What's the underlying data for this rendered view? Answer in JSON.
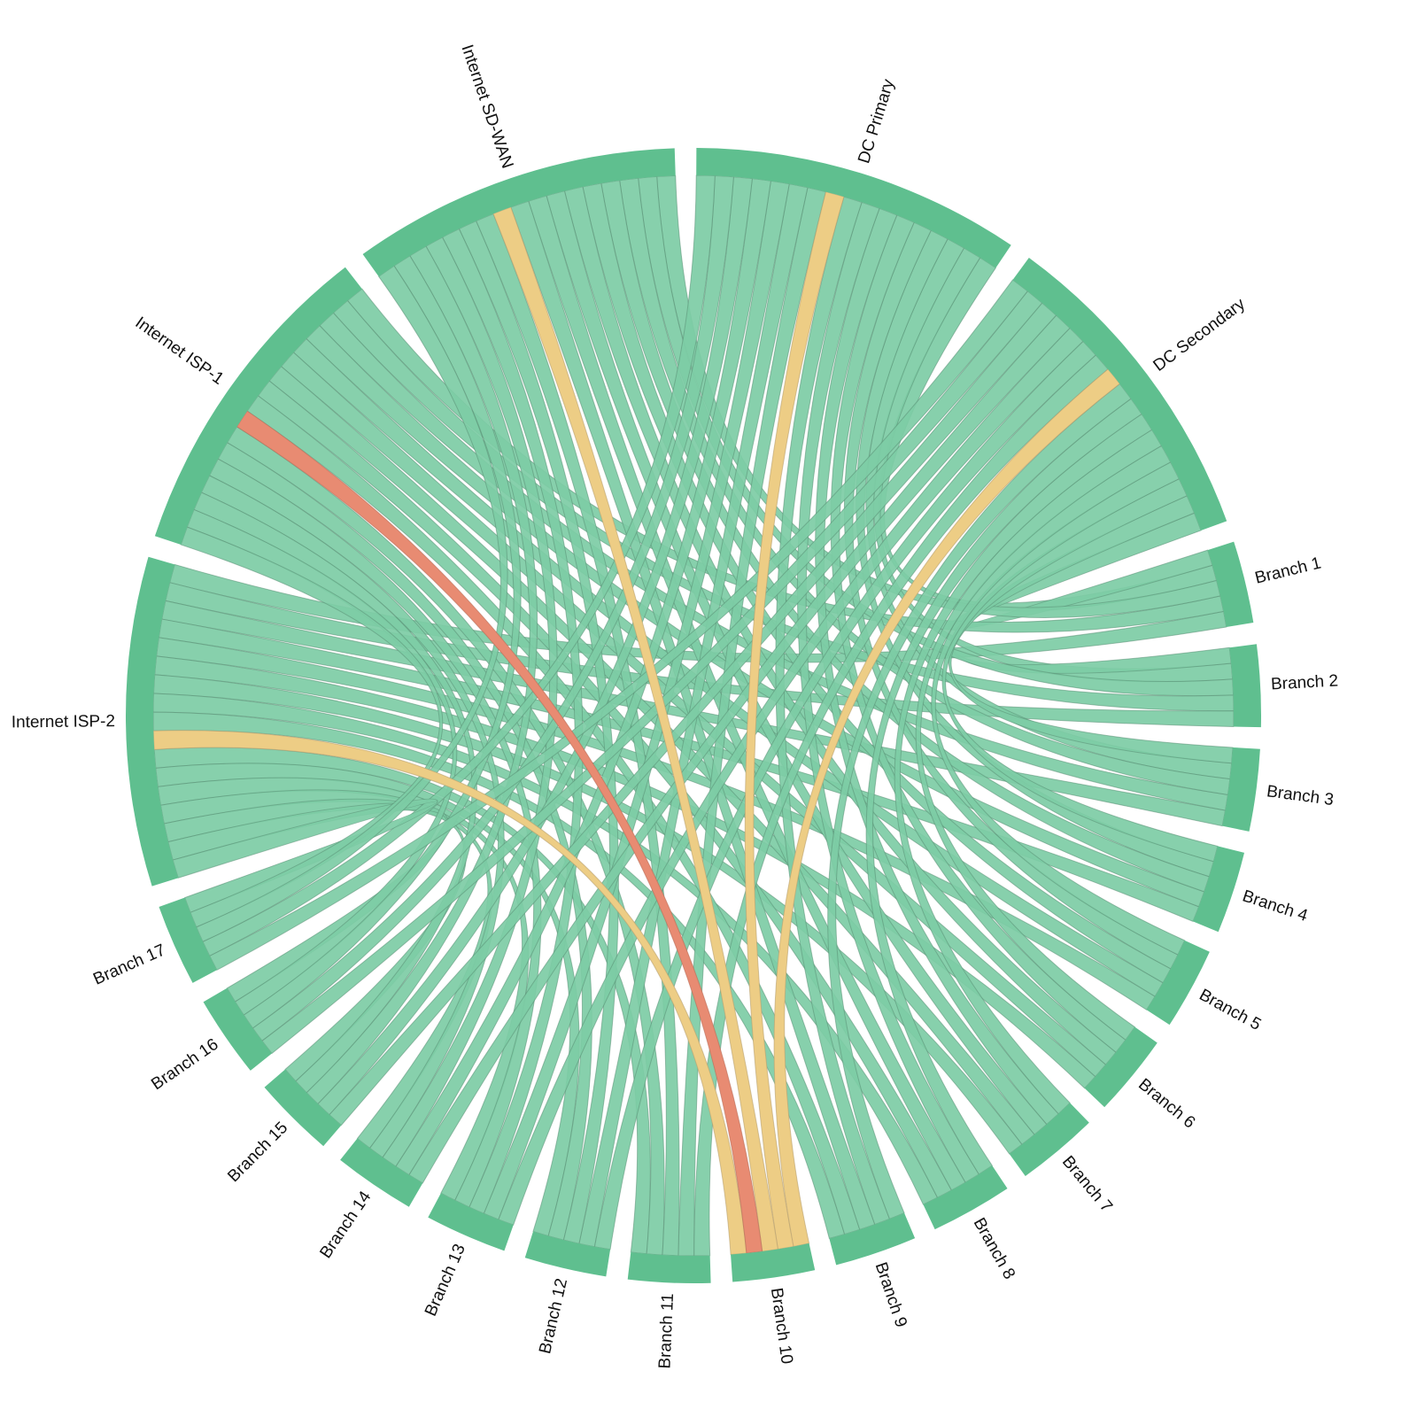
{
  "chart_data": {
    "type": "chord",
    "title": "",
    "colors": {
      "group_arc": "#5fbf8f",
      "ribbon_default": "#7dcca5",
      "ribbon_highlight": "#edcd85",
      "ribbon_critical": "#e88b72"
    },
    "layout": {
      "center": [
        783,
        808
      ],
      "outer_radius": 641,
      "inner_radius": 610,
      "start_angle_deg": 0,
      "gap_deg": 2.2,
      "direction": "clockwise"
    },
    "groups": [
      {
        "id": "dc-primary",
        "label": "DC Primary",
        "type": "hub",
        "value": 17
      },
      {
        "id": "dc-secondary",
        "label": "DC Secondary",
        "type": "hub",
        "value": 17
      },
      {
        "id": "branch-1",
        "label": "Branch 1",
        "type": "branch",
        "value": 5
      },
      {
        "id": "branch-2",
        "label": "Branch 2",
        "type": "branch",
        "value": 5
      },
      {
        "id": "branch-3",
        "label": "Branch 3",
        "type": "branch",
        "value": 5
      },
      {
        "id": "branch-4",
        "label": "Branch 4",
        "type": "branch",
        "value": 5
      },
      {
        "id": "branch-5",
        "label": "Branch 5",
        "type": "branch",
        "value": 5
      },
      {
        "id": "branch-6",
        "label": "Branch 6",
        "type": "branch",
        "value": 5
      },
      {
        "id": "branch-7",
        "label": "Branch 7",
        "type": "branch",
        "value": 5
      },
      {
        "id": "branch-8",
        "label": "Branch 8",
        "type": "branch",
        "value": 5
      },
      {
        "id": "branch-9",
        "label": "Branch 9",
        "type": "branch",
        "value": 5
      },
      {
        "id": "branch-10",
        "label": "Branch 10",
        "type": "branch",
        "value": 5
      },
      {
        "id": "branch-11",
        "label": "Branch 11",
        "type": "branch",
        "value": 5
      },
      {
        "id": "branch-12",
        "label": "Branch 12",
        "type": "branch",
        "value": 5
      },
      {
        "id": "branch-13",
        "label": "Branch 13",
        "type": "branch",
        "value": 5
      },
      {
        "id": "branch-14",
        "label": "Branch 14",
        "type": "branch",
        "value": 5
      },
      {
        "id": "branch-15",
        "label": "Branch 15",
        "type": "branch",
        "value": 5
      },
      {
        "id": "branch-16",
        "label": "Branch 16",
        "type": "branch",
        "value": 5
      },
      {
        "id": "branch-17",
        "label": "Branch 17",
        "type": "branch",
        "value": 5
      },
      {
        "id": "internet-isp-2",
        "label": "Internet ISP-2",
        "type": "hub",
        "value": 17
      },
      {
        "id": "internet-isp-1",
        "label": "Internet ISP-1",
        "type": "hub",
        "value": 17
      },
      {
        "id": "internet-sd-wan",
        "label": "Internet SD-WAN",
        "type": "hub",
        "value": 17
      }
    ],
    "connections_rule": "every branch connects once to each of the 5 hubs (85 links, weight 1 each)",
    "highlighted_links": [
      {
        "source": "Internet ISP-1",
        "target": "Branch 10",
        "status": "critical"
      },
      {
        "source": "Internet ISP-2",
        "target": "Branch 10",
        "status": "warning"
      },
      {
        "source": "Internet SD-WAN",
        "target": "Branch 10",
        "status": "warning"
      },
      {
        "source": "DC Primary",
        "target": "Branch 10",
        "status": "warning"
      },
      {
        "source": "DC Secondary",
        "target": "Branch 10",
        "status": "warning"
      }
    ]
  }
}
